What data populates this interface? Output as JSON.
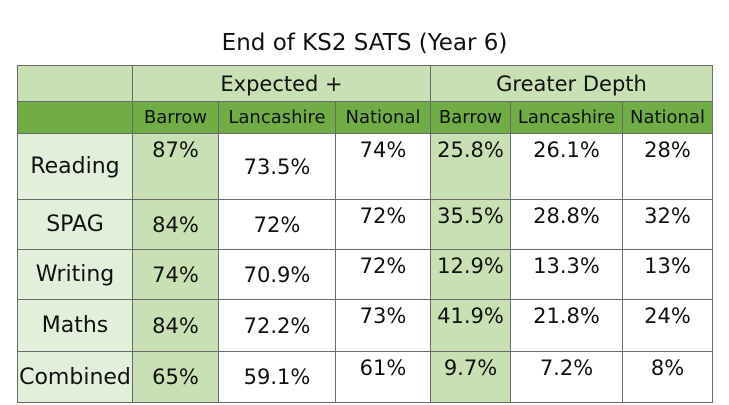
{
  "title": "End of KS2 SATS (Year 6)",
  "groups": [
    "Expected +",
    "Greater Depth"
  ],
  "columns": [
    "Barrow",
    "Lancashire",
    "National",
    "Barrow",
    "Lancashire",
    "National"
  ],
  "rows": [
    {
      "label": "Reading",
      "values": [
        "87%",
        "73.5%",
        "74%",
        "25.8%",
        "26.1%",
        "28%"
      ]
    },
    {
      "label": "SPAG",
      "values": [
        "84%",
        "72%",
        "72%",
        "35.5%",
        "28.8%",
        "32%"
      ]
    },
    {
      "label": "Writing",
      "values": [
        "74%",
        "70.9%",
        "72%",
        "12.9%",
        "13.3%",
        "13%"
      ]
    },
    {
      "label": "Maths",
      "values": [
        "84%",
        "72.2%",
        "73%",
        "41.9%",
        "21.8%",
        "24%"
      ]
    },
    {
      "label": "Combined",
      "values": [
        "65%",
        "59.1%",
        "61%",
        "9.7%",
        "7.2%",
        "8%"
      ]
    }
  ],
  "colors": {
    "header_light": "#c8e0b4",
    "header_dark": "#70ad47",
    "row_label": "#e2efda"
  }
}
